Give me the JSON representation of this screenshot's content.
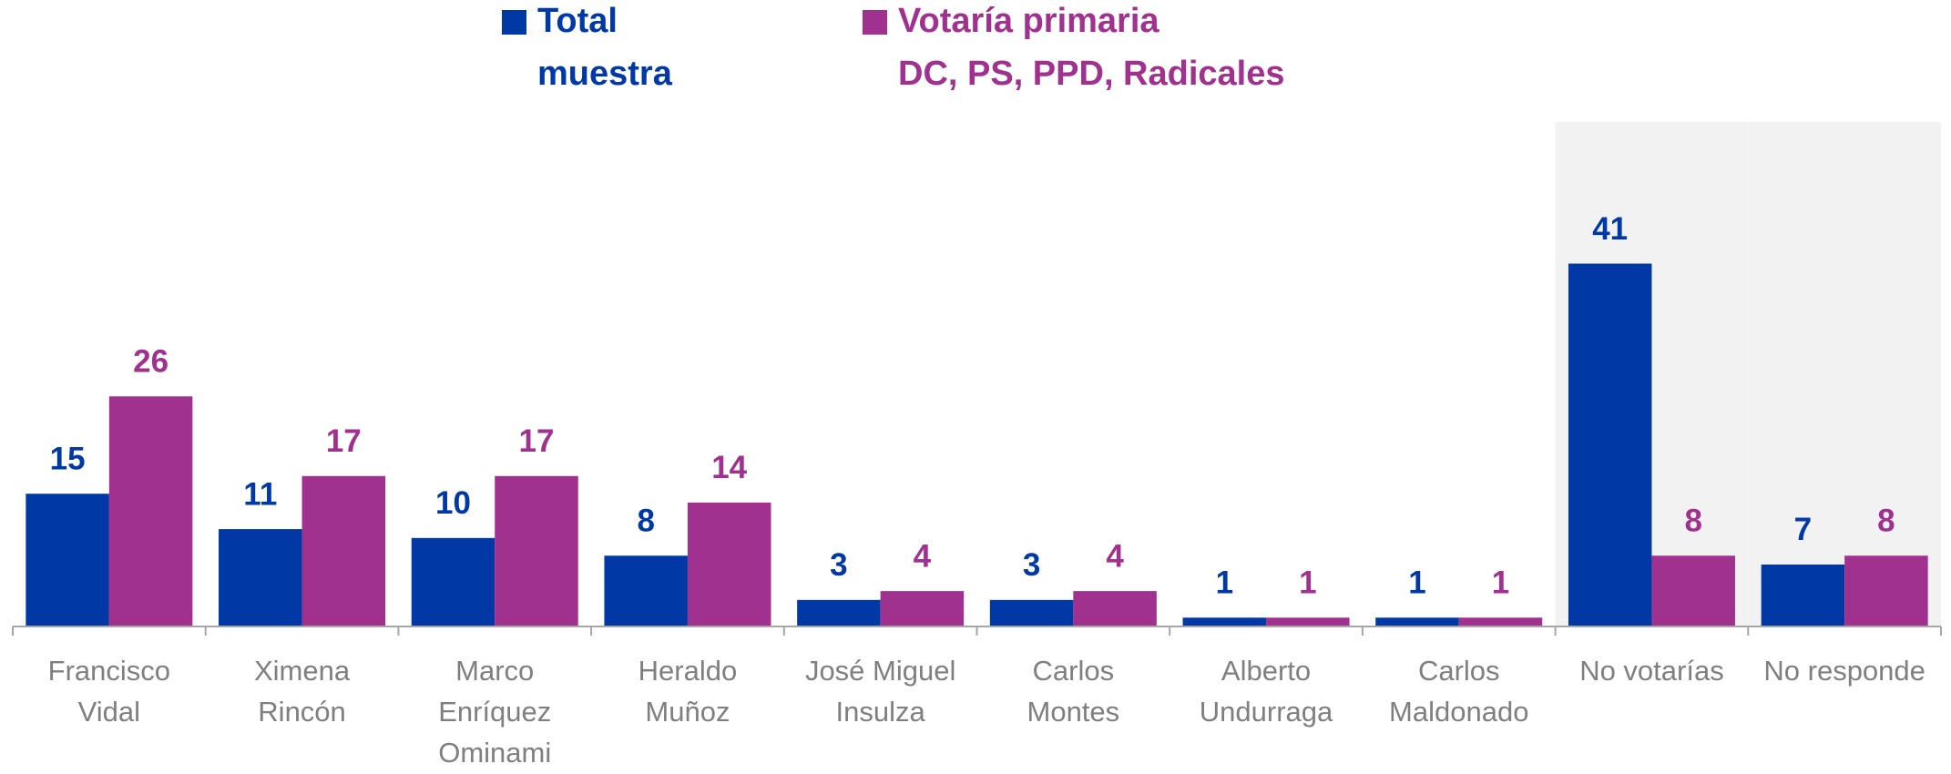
{
  "chart_data": {
    "type": "bar",
    "categories": [
      [
        "Francisco",
        "Vidal"
      ],
      [
        "Ximena",
        "Rincón"
      ],
      [
        "Marco",
        "Enríquez",
        "Ominami"
      ],
      [
        "Heraldo",
        "Muñoz"
      ],
      [
        "José Miguel",
        "Insulza"
      ],
      [
        "Carlos",
        "Montes"
      ],
      [
        "Alberto",
        "Undurraga"
      ],
      [
        "Carlos",
        "Maldonado"
      ],
      [
        "No votarías"
      ],
      [
        "No responde"
      ]
    ],
    "series": [
      {
        "name": [
          "Total",
          "muestra"
        ],
        "color": "#0039a6",
        "values": [
          15,
          11,
          10,
          8,
          3,
          3,
          1,
          1,
          41,
          7
        ]
      },
      {
        "name": [
          "Votaría primaria",
          "DC, PS, PPD, Radicales"
        ],
        "color": "#a0318f",
        "values": [
          26,
          17,
          17,
          14,
          4,
          4,
          1,
          1,
          8,
          8
        ]
      }
    ],
    "ylim": [
      0,
      57
    ],
    "highlighted_categories": [
      8,
      9
    ],
    "highlight_color": "#f2f2f2"
  }
}
